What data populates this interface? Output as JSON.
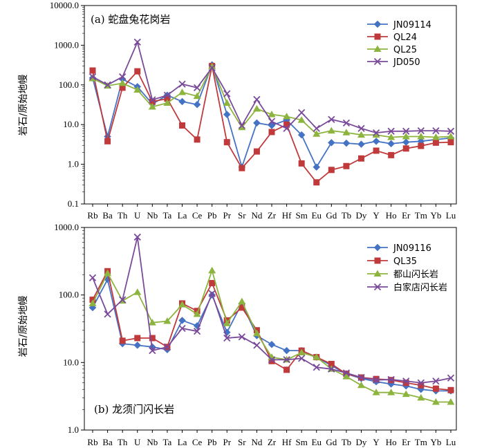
{
  "chart_data": [
    {
      "type": "line",
      "title": "(a) 蛇盘兔花岗岩",
      "ylabel": "岩石/原始地幔",
      "yscale": "log",
      "ylim": [
        0.1,
        10000
      ],
      "yticks": [
        "0.1",
        "1.0",
        "10.0",
        "100.0",
        "1000.0",
        "10000.0"
      ],
      "legend_position": "top-right",
      "categories": [
        "Rb",
        "Ba",
        "Th",
        "U",
        "Nb",
        "Ta",
        "La",
        "Ce",
        "Pb",
        "Pr",
        "Sr",
        "Nd",
        "Zr",
        "Hf",
        "Sm",
        "Eu",
        "Gd",
        "Tb",
        "Dy",
        "Y",
        "Ho",
        "Er",
        "Tm",
        "Yb",
        "Lu"
      ],
      "series": [
        {
          "name": "JN09114",
          "color": "#4472c4",
          "marker": "diamond",
          "values": [
            150,
            5,
            140,
            90,
            33,
            55,
            38,
            32,
            320,
            18,
            0.85,
            11,
            9.5,
            13,
            5.5,
            0.85,
            3.5,
            3.4,
            3.2,
            3.8,
            3.3,
            3.6,
            3.8,
            4.2,
            4.6
          ]
        },
        {
          "name": "QL24",
          "color": "#c0393b",
          "marker": "square",
          "values": [
            230,
            3.8,
            85,
            220,
            38,
            45,
            9.5,
            4.2,
            300,
            3.6,
            0.8,
            2.1,
            6.5,
            10,
            1.05,
            0.35,
            0.72,
            0.9,
            1.4,
            2.2,
            1.7,
            2.5,
            2.9,
            3.5,
            3.6
          ]
        },
        {
          "name": "QL25",
          "color": "#8db43e",
          "marker": "triangle",
          "values": [
            145,
            95,
            110,
            75,
            28,
            35,
            65,
            52,
            290,
            35,
            8.5,
            25,
            18,
            16,
            13,
            5.8,
            7,
            6.3,
            5.5,
            5.5,
            4.8,
            5,
            5,
            4.8,
            5
          ]
        },
        {
          "name": "JD050",
          "color": "#7a4a9a",
          "marker": "x",
          "values": [
            160,
            100,
            160,
            1200,
            42,
            55,
            105,
            85,
            270,
            60,
            9.5,
            43,
            12,
            8,
            20,
            8,
            13.5,
            11,
            8,
            6.2,
            6.8,
            6.8,
            7,
            7,
            6.8
          ]
        }
      ]
    },
    {
      "type": "line",
      "title": "(b) 龙须门闪长岩",
      "ylabel": "岩石/原始地幔",
      "yscale": "log",
      "ylim": [
        1,
        1000
      ],
      "yticks": [
        "1.0",
        "10.0",
        "100.0",
        "1000.0"
      ],
      "legend_position": "top-right",
      "categories": [
        "Rb",
        "Ba",
        "Th",
        "U",
        "Nb",
        "Ta",
        "La",
        "Ce",
        "Pb",
        "Pr",
        "Sr",
        "Nd",
        "Zr",
        "Hf",
        "Sm",
        "Eu",
        "Gd",
        "Tb",
        "Dy",
        "Y",
        "Ho",
        "Er",
        "Tm",
        "Yb",
        "Lu"
      ],
      "series": [
        {
          "name": "JN09116",
          "color": "#4472c4",
          "marker": "diamond",
          "values": [
            65,
            170,
            19,
            18,
            17,
            15.5,
            42,
            35,
            100,
            28,
            75,
            25,
            18.5,
            15,
            15,
            12,
            9,
            6.8,
            5.8,
            5.2,
            4.8,
            4.5,
            4.0,
            3.8,
            3.8
          ]
        },
        {
          "name": "QL35",
          "color": "#c0393b",
          "marker": "square",
          "values": [
            85,
            225,
            21,
            23,
            23,
            17,
            75,
            58,
            150,
            42,
            65,
            30,
            10.5,
            7.8,
            15,
            12,
            9.5,
            6.8,
            6,
            5.7,
            5.5,
            5.0,
            4.6,
            4.1,
            3.9
          ]
        },
        {
          "name": "都山闪长岩",
          "color": "#8db43e",
          "marker": "triangle",
          "values": [
            75,
            210,
            82,
            110,
            39,
            41,
            72,
            52,
            230,
            38,
            80,
            27,
            12,
            11,
            14,
            12,
            8,
            6.2,
            4.6,
            3.6,
            3.6,
            3.4,
            3.0,
            2.6,
            2.6
          ]
        },
        {
          "name": "白家店闪长岩",
          "color": "#7a4a9a",
          "marker": "x",
          "values": [
            180,
            52,
            85,
            720,
            15,
            17,
            32,
            29,
            105,
            23,
            24,
            18,
            11,
            11,
            11.5,
            8.5,
            8,
            7,
            6,
            5.5,
            5.6,
            5.3,
            5.0,
            5.3,
            5.9
          ]
        }
      ]
    }
  ]
}
